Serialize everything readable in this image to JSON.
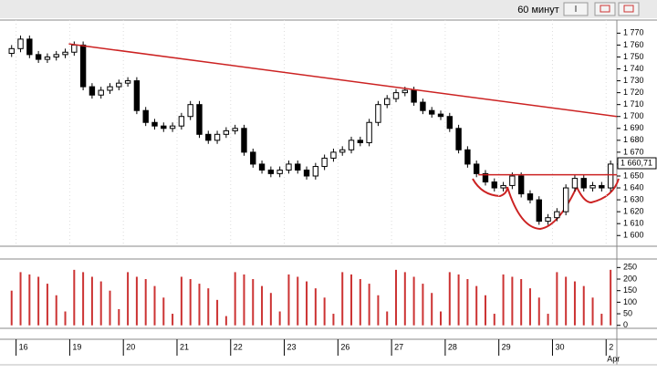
{
  "chart_data": {
    "type": "candlestick",
    "window_title": "60 минут",
    "x": [
      -0.5,
      0.5,
      1.5,
      2.5,
      3.5,
      4.5,
      5.5,
      6.5,
      7.5,
      8.5,
      9.5,
      10.5,
      11.5,
      12.5,
      13.5,
      14.5,
      15.5,
      16.5,
      17.5,
      18.5,
      19.5,
      20.5,
      21.5,
      22.5,
      23.5,
      24.5,
      25.5,
      26.5,
      27.5,
      28.5,
      29.5,
      30.5,
      31.5,
      32.5,
      33.5,
      34.5,
      35.5,
      36.5,
      37.5,
      38.5,
      39.5,
      40.5,
      41.5,
      42.5,
      43.5,
      44.5,
      45.5,
      46.5,
      47.5,
      48.5,
      49.5,
      50.5,
      51.5,
      52.5,
      53.5,
      54.5,
      55.5,
      56.5,
      57.5,
      58.5,
      59.5,
      60.5,
      61.5,
      62.5,
      63.5,
      64.5,
      65.5,
      66.5
    ],
    "open": [
      1753,
      1757,
      1765,
      1752,
      1748,
      1750,
      1752,
      1754,
      1760,
      1725,
      1718,
      1722,
      1725,
      1728,
      1730,
      1705,
      1695,
      1692,
      1690,
      1692,
      1700,
      1710,
      1685,
      1680,
      1685,
      1688,
      1690,
      1670,
      1660,
      1655,
      1652,
      1655,
      1660,
      1655,
      1650,
      1658,
      1665,
      1670,
      1672,
      1680,
      1678,
      1695,
      1710,
      1715,
      1720,
      1722,
      1712,
      1705,
      1702,
      1700,
      1690,
      1672,
      1660,
      1652,
      1645,
      1640,
      1642,
      1650,
      1635,
      1630,
      1612,
      1615,
      1620,
      1640,
      1648,
      1640,
      1642,
      1640
    ],
    "high": [
      1760,
      1768,
      1768,
      1755,
      1753,
      1755,
      1757,
      1763,
      1763,
      1728,
      1725,
      1728,
      1731,
      1733,
      1733,
      1708,
      1698,
      1695,
      1695,
      1703,
      1713,
      1713,
      1688,
      1688,
      1691,
      1693,
      1693,
      1673,
      1663,
      1658,
      1658,
      1663,
      1663,
      1658,
      1661,
      1668,
      1673,
      1675,
      1683,
      1683,
      1698,
      1713,
      1718,
      1723,
      1725,
      1725,
      1715,
      1708,
      1705,
      1703,
      1693,
      1675,
      1663,
      1655,
      1648,
      1645,
      1653,
      1653,
      1638,
      1633,
      1618,
      1623,
      1643,
      1651,
      1651,
      1645,
      1645,
      1663
    ],
    "low": [
      1750,
      1754,
      1749,
      1745,
      1745,
      1747,
      1749,
      1751,
      1722,
      1715,
      1715,
      1719,
      1722,
      1725,
      1702,
      1692,
      1689,
      1687,
      1687,
      1689,
      1697,
      1682,
      1677,
      1677,
      1682,
      1685,
      1667,
      1657,
      1652,
      1649,
      1649,
      1652,
      1652,
      1647,
      1647,
      1655,
      1662,
      1667,
      1669,
      1675,
      1675,
      1692,
      1707,
      1712,
      1717,
      1709,
      1702,
      1699,
      1697,
      1687,
      1669,
      1657,
      1649,
      1642,
      1637,
      1637,
      1639,
      1632,
      1627,
      1609,
      1609,
      1612,
      1617,
      1637,
      1637,
      1637,
      1637,
      1637
    ],
    "close": [
      1757,
      1765,
      1752,
      1748,
      1750,
      1752,
      1754,
      1760,
      1725,
      1718,
      1722,
      1725,
      1728,
      1730,
      1705,
      1695,
      1692,
      1690,
      1692,
      1700,
      1710,
      1685,
      1680,
      1685,
      1688,
      1690,
      1670,
      1660,
      1655,
      1652,
      1655,
      1660,
      1655,
      1650,
      1658,
      1665,
      1670,
      1672,
      1680,
      1678,
      1695,
      1710,
      1715,
      1720,
      1722,
      1712,
      1705,
      1702,
      1700,
      1690,
      1672,
      1660,
      1652,
      1645,
      1640,
      1642,
      1650,
      1635,
      1630,
      1612,
      1615,
      1620,
      1640,
      1648,
      1640,
      1642,
      1640,
      1660
    ],
    "xlim": [
      -1.8,
      67.2
    ],
    "xticks": [
      {
        "value": 0,
        "label": "16"
      },
      {
        "value": 6,
        "label": "19"
      },
      {
        "value": 12,
        "label": "20"
      },
      {
        "value": 18,
        "label": "21"
      },
      {
        "value": 24,
        "label": "22"
      },
      {
        "value": 30,
        "label": "23"
      },
      {
        "value": 36,
        "label": "26"
      },
      {
        "value": 42,
        "label": "27"
      },
      {
        "value": 48,
        "label": "28"
      },
      {
        "value": 54,
        "label": "29"
      },
      {
        "value": 60,
        "label": "30"
      },
      {
        "value": 66,
        "label": "2"
      }
    ],
    "month_label": "Apr",
    "ylim": [
      1591,
      1781
    ],
    "yticks": [
      {
        "value": 1600,
        "label": "1 600"
      },
      {
        "value": 1610,
        "label": "1 610"
      },
      {
        "value": 1620,
        "label": "1 620"
      },
      {
        "value": 1630,
        "label": "1 630"
      },
      {
        "value": 1640,
        "label": "1 640"
      },
      {
        "value": 1650,
        "label": "1 650"
      },
      {
        "value": 1660,
        "label": "1 660"
      },
      {
        "value": 1670,
        "label": "1 670"
      },
      {
        "value": 1680,
        "label": "1 680"
      },
      {
        "value": 1690,
        "label": "1 690"
      },
      {
        "value": 1700,
        "label": "1 700"
      },
      {
        "value": 1710,
        "label": "1 710"
      },
      {
        "value": 1720,
        "label": "1 720"
      },
      {
        "value": 1730,
        "label": "1 730"
      },
      {
        "value": 1740,
        "label": "1 740"
      },
      {
        "value": 1750,
        "label": "1 750"
      },
      {
        "value": 1760,
        "label": "1 760"
      },
      {
        "value": 1770,
        "label": "1 770"
      }
    ],
    "last_price": {
      "value": 1660.71,
      "label": "1 660,71"
    },
    "up_color": "#ffffff",
    "down_color": "#000000",
    "trendlines": [
      {
        "color": "#cc2222",
        "x": [
          5.9,
          67.2
        ],
        "y": [
          1761,
          1700
        ]
      },
      {
        "color": "#cc2222",
        "x": [
          51.7,
          67.2
        ],
        "y": [
          1651,
          1651
        ]
      }
    ],
    "volume": {
      "color": "#cc3333",
      "values": [
        150,
        230,
        220,
        210,
        180,
        130,
        60,
        240,
        230,
        210,
        190,
        150,
        70,
        230,
        210,
        200,
        170,
        120,
        50,
        210,
        200,
        180,
        160,
        110,
        40,
        230,
        220,
        200,
        170,
        140,
        60,
        220,
        210,
        190,
        160,
        120,
        50,
        230,
        220,
        200,
        180,
        130,
        60,
        240,
        230,
        210,
        180,
        140,
        60,
        230,
        220,
        200,
        170,
        130,
        50,
        220,
        210,
        200,
        160,
        120,
        50,
        230,
        210,
        190,
        170,
        120,
        50,
        240
      ],
      "ylim": [
        -5,
        275
      ],
      "yticks": [
        0,
        50,
        100,
        150,
        200,
        250
      ]
    }
  }
}
